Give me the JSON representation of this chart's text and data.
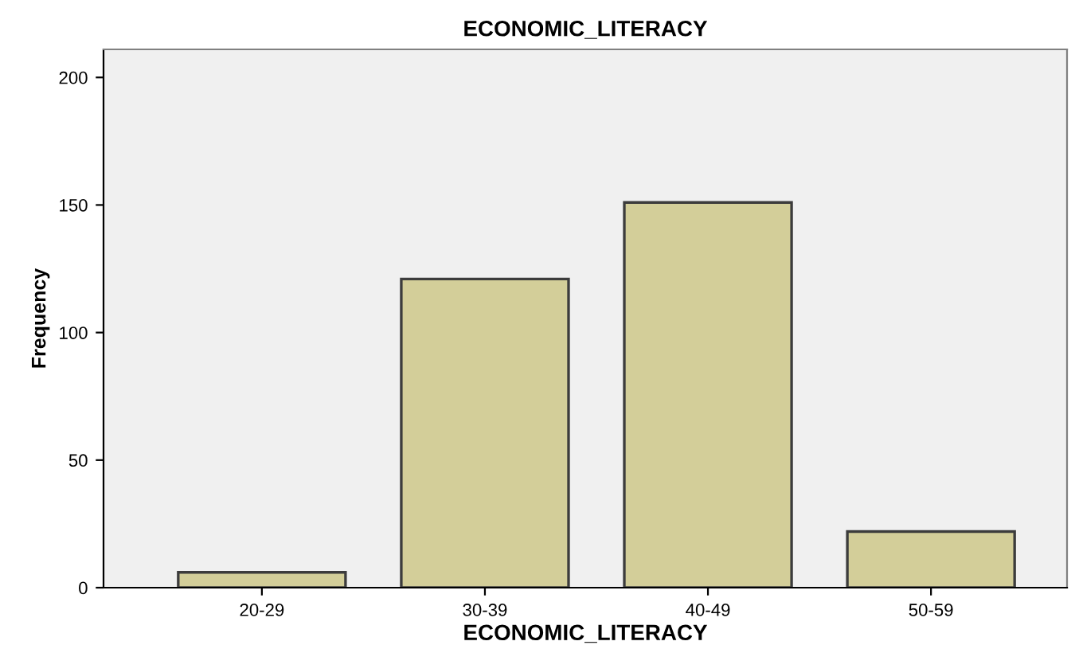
{
  "chart_data": {
    "type": "bar",
    "title": "ECONOMIC_LITERACY",
    "xlabel": "ECONOMIC_LITERACY",
    "ylabel": "Frequency",
    "categories": [
      "20-29",
      "30-39",
      "40-49",
      "50-59"
    ],
    "values": [
      6,
      121,
      151,
      22
    ],
    "color": "#d3ce99",
    "ylim": [
      0,
      211
    ],
    "yticks": [
      0,
      50,
      100,
      150,
      200
    ],
    "grid": false
  }
}
